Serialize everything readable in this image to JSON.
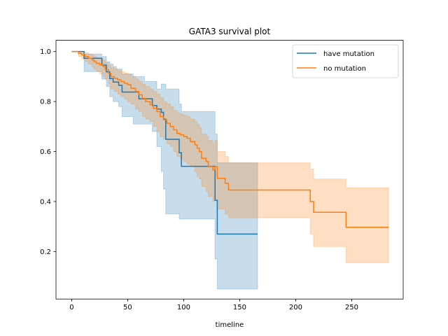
{
  "chart_data": {
    "type": "line",
    "title": "GATA3 survival plot",
    "xlabel": "timeline",
    "ylabel": "",
    "xlim": [
      -14,
      296
    ],
    "ylim": [
      0.01,
      1.045
    ],
    "xticks": [
      0,
      50,
      100,
      150,
      200,
      250
    ],
    "yticks": [
      0.2,
      0.4,
      0.6,
      0.8,
      1.0
    ],
    "xtick_labels": [
      "0",
      "50",
      "100",
      "150",
      "200",
      "250"
    ],
    "ytick_labels": [
      "0.2",
      "0.4",
      "0.6",
      "0.8",
      "1.0"
    ],
    "grid": false,
    "legend_position": "top-right",
    "step": "post",
    "series": [
      {
        "name": "have mutation",
        "color": "#1f77b4",
        "ci_color": "#1f77b4",
        "x": [
          0,
          11,
          14,
          17,
          22,
          27,
          29,
          31,
          34,
          37,
          40,
          42,
          45,
          55,
          60,
          65,
          72,
          76,
          80,
          82,
          84,
          96,
          98,
          108,
          119,
          127,
          128,
          130,
          166
        ],
        "y": [
          1.0,
          0.973,
          0.973,
          0.973,
          0.973,
          0.946,
          0.946,
          0.919,
          0.892,
          0.878,
          0.878,
          0.865,
          0.838,
          0.838,
          0.811,
          0.811,
          0.784,
          0.77,
          0.757,
          0.73,
          0.649,
          0.595,
          0.541,
          0.541,
          0.541,
          0.541,
          0.405,
          0.27,
          0.27
        ],
        "lower": [
          1.0,
          0.92,
          0.92,
          0.92,
          0.92,
          0.89,
          0.89,
          0.86,
          0.82,
          0.8,
          0.8,
          0.78,
          0.74,
          0.71,
          0.71,
          0.71,
          0.68,
          0.62,
          0.52,
          0.45,
          0.35,
          0.33,
          0.33,
          0.33,
          0.33,
          0.33,
          0.17,
          0.05,
          0.05
        ],
        "upper": [
          1.0,
          0.99,
          0.99,
          0.99,
          0.99,
          0.98,
          0.98,
          0.96,
          0.95,
          0.94,
          0.93,
          0.93,
          0.91,
          0.9,
          0.9,
          0.88,
          0.88,
          0.85,
          0.87,
          0.87,
          0.85,
          0.79,
          0.76,
          0.76,
          0.76,
          0.76,
          0.67,
          0.555,
          0.555
        ]
      },
      {
        "name": "no mutation",
        "color": "#ff7f0e",
        "ci_color": "#ff7f0e",
        "x": [
          0,
          6,
          9,
          12,
          15,
          18,
          20,
          22,
          25,
          28,
          30,
          33,
          35,
          38,
          41,
          44,
          47,
          50,
          53,
          57,
          60,
          63,
          66,
          70,
          73,
          76,
          79,
          82,
          85,
          88,
          91,
          94,
          97,
          100,
          103,
          106,
          110,
          112,
          114,
          116,
          118,
          120,
          122,
          126,
          128,
          130,
          137,
          140,
          213,
          216,
          245,
          283
        ],
        "y": [
          1.0,
          0.993,
          0.987,
          0.98,
          0.973,
          0.967,
          0.96,
          0.953,
          0.947,
          0.94,
          0.927,
          0.913,
          0.9,
          0.893,
          0.887,
          0.88,
          0.873,
          0.867,
          0.853,
          0.84,
          0.827,
          0.813,
          0.8,
          0.787,
          0.773,
          0.76,
          0.74,
          0.727,
          0.713,
          0.7,
          0.687,
          0.673,
          0.667,
          0.66,
          0.653,
          0.64,
          0.627,
          0.613,
          0.6,
          0.573,
          0.573,
          0.56,
          0.54,
          0.527,
          0.54,
          0.493,
          0.473,
          0.446,
          0.4,
          0.357,
          0.297,
          0.297
        ],
        "lower": [
          1.0,
          0.98,
          0.97,
          0.96,
          0.95,
          0.94,
          0.93,
          0.92,
          0.91,
          0.9,
          0.89,
          0.87,
          0.85,
          0.84,
          0.83,
          0.82,
          0.81,
          0.8,
          0.79,
          0.77,
          0.76,
          0.74,
          0.73,
          0.72,
          0.7,
          0.68,
          0.66,
          0.65,
          0.63,
          0.62,
          0.6,
          0.58,
          0.57,
          0.56,
          0.55,
          0.54,
          0.52,
          0.5,
          0.49,
          0.46,
          0.46,
          0.44,
          0.42,
          0.4,
          0.41,
          0.37,
          0.35,
          0.335,
          0.27,
          0.22,
          0.155,
          0.155
        ],
        "upper": [
          1.0,
          1.0,
          1.0,
          0.995,
          0.99,
          0.985,
          0.98,
          0.975,
          0.97,
          0.965,
          0.955,
          0.945,
          0.935,
          0.93,
          0.925,
          0.92,
          0.915,
          0.91,
          0.9,
          0.89,
          0.88,
          0.87,
          0.86,
          0.85,
          0.84,
          0.83,
          0.815,
          0.8,
          0.79,
          0.78,
          0.765,
          0.755,
          0.75,
          0.745,
          0.74,
          0.73,
          0.72,
          0.71,
          0.695,
          0.67,
          0.67,
          0.66,
          0.645,
          0.63,
          0.645,
          0.6,
          0.58,
          0.555,
          0.53,
          0.49,
          0.455,
          0.455
        ]
      }
    ]
  }
}
